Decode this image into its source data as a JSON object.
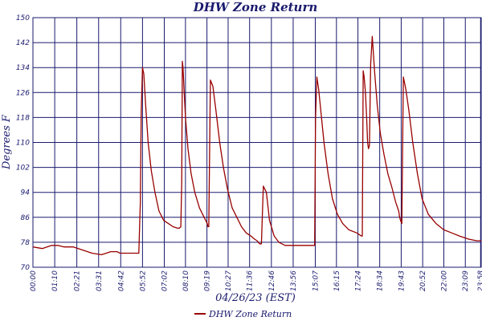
{
  "chart_data": {
    "type": "line",
    "title": "DHW Zone Return",
    "xlabel": "04/26/23 (EST)",
    "ylabel": "Degrees F",
    "ylim": [
      70,
      150
    ],
    "yticks": [
      70,
      78,
      86,
      94,
      102,
      110,
      118,
      126,
      134,
      142,
      150
    ],
    "xlim": [
      0,
      1440
    ],
    "xtick_minutes": [
      0,
      70,
      141,
      211,
      282,
      352,
      422,
      490,
      559,
      627,
      696,
      766,
      836,
      907,
      975,
      1044,
      1114,
      1183,
      1252,
      1320,
      1389,
      1438
    ],
    "xtick_labels": [
      "00:00",
      "01:10",
      "02:21",
      "03:31",
      "04:42",
      "05:52",
      "07:02",
      "08:10",
      "09:19",
      "10:27",
      "11:36",
      "12:46",
      "13:56",
      "15:07",
      "16:15",
      "17:24",
      "18:34",
      "19:43",
      "20:52",
      "22:00",
      "23:09",
      "23:58"
    ],
    "grid": true,
    "legend_position": "bottom",
    "colors": {
      "series": "#990000",
      "grid": "#1a1a6e",
      "text": "#1a1a6e"
    },
    "series": [
      {
        "name": "DHW Zone Return",
        "x": [
          0,
          30,
          60,
          80,
          100,
          130,
          160,
          190,
          220,
          250,
          270,
          280,
          300,
          320,
          340,
          345,
          348,
          352,
          356,
          362,
          370,
          380,
          392,
          405,
          420,
          435,
          450,
          465,
          470,
          475,
          478,
          480,
          482,
          486,
          490,
          498,
          508,
          520,
          535,
          550,
          560,
          562,
          565,
          570,
          578,
          588,
          600,
          612,
          625,
          640,
          655,
          670,
          685,
          700,
          712,
          720,
          724,
          728,
          734,
          740,
          750,
          760,
          775,
          790,
          810,
          830,
          860,
          890,
          905,
          908,
          912,
          918,
          925,
          935,
          948,
          962,
          978,
          995,
          1015,
          1040,
          1055,
          1058,
          1061,
          1064,
          1068,
          1072,
          1075,
          1078,
          1081,
          1085,
          1090,
          1098,
          1106,
          1116,
          1128,
          1140,
          1152,
          1165,
          1175,
          1178,
          1181,
          1185,
          1190,
          1198,
          1208,
          1220,
          1235,
          1250,
          1270,
          1295,
          1320,
          1345,
          1370,
          1400,
          1425,
          1440
        ],
        "y": [
          76.5,
          76,
          77,
          77,
          76.5,
          76.5,
          75.5,
          74.5,
          74,
          75,
          75,
          74.5,
          74.5,
          74.5,
          74.5,
          91,
          120,
          134,
          132,
          122,
          110,
          101,
          94,
          88,
          85,
          84,
          83,
          82.5,
          82.5,
          83,
          97,
          136,
          134,
          126,
          118,
          108,
          100,
          94,
          89,
          86,
          84,
          83,
          83,
          130,
          128,
          120,
          110,
          102,
          95,
          89,
          86,
          83,
          81,
          80,
          79,
          78.5,
          78,
          77.5,
          77.5,
          96,
          94,
          85,
          80,
          78,
          77,
          77,
          77,
          77,
          77,
          118,
          131,
          127,
          120,
          110,
          100,
          92,
          87,
          84,
          82,
          81,
          80,
          80,
          133,
          131,
          126,
          118,
          110,
          108,
          109,
          135,
          144,
          132,
          122,
          113,
          106,
          100,
          96,
          91,
          88,
          86,
          85,
          84,
          131,
          127,
          120,
          110,
          100,
          92,
          87,
          84,
          82,
          81,
          80,
          79,
          78.5,
          78.5
        ]
      }
    ]
  }
}
